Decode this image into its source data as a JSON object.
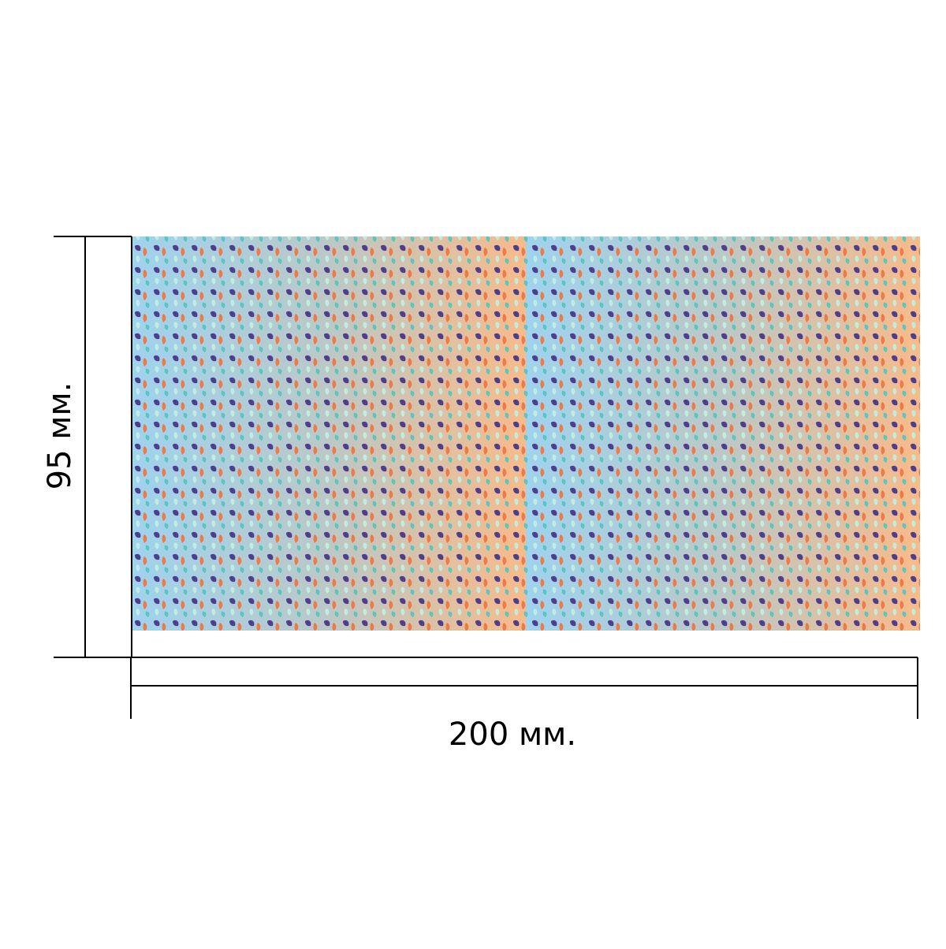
{
  "dimensions": {
    "height_label": "95 мм.",
    "width_label": "200 мм."
  },
  "product": {
    "panel_count": 2,
    "pattern": "leaf-pattern",
    "colors": {
      "gradient_left": "#9fd3ef",
      "gradient_mid": "#bcc8c6",
      "gradient_right": "#f8bb8a",
      "leaf_dark_purple": "#4d3e8e",
      "leaf_orange": "#ef7a45",
      "leaf_mint": "#bfeee0",
      "leaf_teal": "#56c7c1",
      "line": "#000000"
    }
  }
}
